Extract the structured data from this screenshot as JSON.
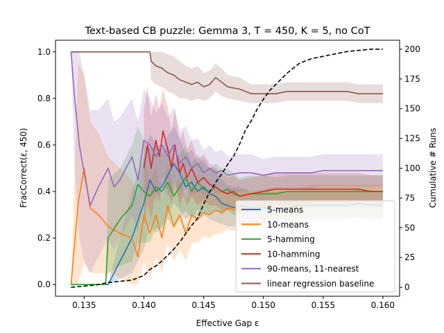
{
  "chart_data": {
    "type": "line",
    "title": "Text-based CB puzzle: Gemma 3, T = 450, K = 5, no CoT",
    "xlabel": "Effective Gap ε",
    "ylabel": "FracCorrect(ε, 450)",
    "y2label": "Cumulative # Runs",
    "xlim": [
      0.1326,
      0.1614
    ],
    "ylim": [
      -0.05,
      1.05
    ],
    "y2lim": [
      -7.5,
      207.5
    ],
    "xticks": [
      "0.135",
      "0.140",
      "0.145",
      "0.150",
      "0.155",
      "0.160"
    ],
    "xtick_values": [
      0.135,
      0.14,
      0.145,
      0.15,
      0.155,
      0.16
    ],
    "yticks": [
      "0.0",
      "0.2",
      "0.4",
      "0.6",
      "0.8",
      "1.0"
    ],
    "ytick_values": [
      0,
      0.2,
      0.4,
      0.6,
      0.8,
      1.0
    ],
    "y2ticks": [
      "0",
      "25",
      "50",
      "75",
      "100",
      "125",
      "150",
      "175",
      "200"
    ],
    "y2tick_values": [
      0,
      25,
      50,
      75,
      100,
      125,
      150,
      175,
      200
    ],
    "grid": false,
    "legend_position": "bottom-right",
    "series": [
      {
        "name": "5-means",
        "color": "#1f77b4",
        "x": [
          0.1339,
          0.1352,
          0.137,
          0.139,
          0.14,
          0.1405,
          0.141,
          0.1415,
          0.142,
          0.1425,
          0.143,
          0.1435,
          0.144,
          0.1445,
          0.145,
          0.1455,
          0.146,
          0.1465,
          0.147,
          0.1475,
          0.148,
          0.149,
          0.15,
          0.151,
          0.152,
          0.153,
          0.154,
          0.155,
          0.156,
          0.157,
          0.158,
          0.159,
          0.16
        ],
        "y": [
          0.0,
          0.0,
          0.0,
          0.2,
          0.35,
          0.45,
          0.4,
          0.42,
          0.47,
          0.52,
          0.48,
          0.42,
          0.44,
          0.4,
          0.42,
          0.39,
          0.38,
          0.35,
          0.34,
          0.33,
          0.34,
          0.33,
          0.33,
          0.33,
          0.33,
          0.34,
          0.34,
          0.34,
          0.34,
          0.34,
          0.35,
          0.34,
          0.34
        ],
        "lower": [
          0.0,
          0.0,
          0.0,
          0.05,
          0.15,
          0.25,
          0.22,
          0.25,
          0.3,
          0.35,
          0.32,
          0.28,
          0.3,
          0.28,
          0.3,
          0.28,
          0.27,
          0.26,
          0.25,
          0.25,
          0.26,
          0.26,
          0.26,
          0.27,
          0.27,
          0.28,
          0.28,
          0.28,
          0.28,
          0.28,
          0.29,
          0.28,
          0.28
        ],
        "upper": [
          0.0,
          0.0,
          0.0,
          0.4,
          0.55,
          0.65,
          0.6,
          0.6,
          0.64,
          0.68,
          0.63,
          0.56,
          0.58,
          0.52,
          0.54,
          0.5,
          0.49,
          0.45,
          0.43,
          0.42,
          0.42,
          0.4,
          0.4,
          0.4,
          0.4,
          0.4,
          0.4,
          0.4,
          0.4,
          0.4,
          0.41,
          0.4,
          0.4
        ]
      },
      {
        "name": "10-means",
        "color": "#ff7f0e",
        "x": [
          0.1339,
          0.1345,
          0.135,
          0.1355,
          0.1362,
          0.137,
          0.138,
          0.139,
          0.1395,
          0.14,
          0.1405,
          0.141,
          0.1415,
          0.142,
          0.1425,
          0.143,
          0.1435,
          0.144,
          0.1445,
          0.145,
          0.1455,
          0.146,
          0.1465,
          0.147,
          0.1475,
          0.148,
          0.149,
          0.15,
          0.151,
          0.152,
          0.153,
          0.154,
          0.155,
          0.156,
          0.157,
          0.158,
          0.159,
          0.16
        ],
        "y": [
          0.0,
          0.35,
          0.5,
          0.33,
          0.3,
          0.25,
          0.22,
          0.2,
          0.12,
          0.3,
          0.22,
          0.3,
          0.2,
          0.34,
          0.25,
          0.3,
          0.22,
          0.3,
          0.28,
          0.31,
          0.3,
          0.32,
          0.31,
          0.33,
          0.32,
          0.33,
          0.32,
          0.34,
          0.35,
          0.35,
          0.35,
          0.36,
          0.36,
          0.36,
          0.36,
          0.36,
          0.36,
          0.36
        ],
        "lower": [
          0.0,
          0.0,
          0.1,
          0.05,
          0.05,
          0.05,
          0.03,
          0.0,
          0.0,
          0.1,
          0.02,
          0.12,
          0.05,
          0.18,
          0.1,
          0.15,
          0.1,
          0.18,
          0.18,
          0.21,
          0.2,
          0.22,
          0.22,
          0.24,
          0.23,
          0.25,
          0.25,
          0.27,
          0.28,
          0.28,
          0.28,
          0.29,
          0.29,
          0.29,
          0.29,
          0.29,
          0.29,
          0.29
        ],
        "upper": [
          0.0,
          0.95,
          0.9,
          0.7,
          0.65,
          0.55,
          0.5,
          0.45,
          0.38,
          0.55,
          0.45,
          0.5,
          0.38,
          0.52,
          0.42,
          0.46,
          0.36,
          0.44,
          0.4,
          0.42,
          0.4,
          0.42,
          0.4,
          0.42,
          0.41,
          0.41,
          0.4,
          0.41,
          0.42,
          0.42,
          0.42,
          0.43,
          0.43,
          0.43,
          0.43,
          0.43,
          0.43,
          0.43
        ]
      },
      {
        "name": "5-hamming",
        "color": "#2ca02c",
        "x": [
          0.1339,
          0.1352,
          0.1368,
          0.137,
          0.138,
          0.139,
          0.1395,
          0.14,
          0.1405,
          0.141,
          0.1415,
          0.142,
          0.1425,
          0.143,
          0.1435,
          0.144,
          0.1445,
          0.145,
          0.1455,
          0.146,
          0.1465,
          0.147,
          0.1475,
          0.148,
          0.149,
          0.15,
          0.151,
          0.152,
          0.153,
          0.154,
          0.155,
          0.156,
          0.157,
          0.158,
          0.159,
          0.16
        ],
        "y": [
          0.0,
          0.0,
          0.0,
          0.2,
          0.28,
          0.34,
          0.43,
          0.4,
          0.38,
          0.42,
          0.4,
          0.44,
          0.38,
          0.42,
          0.46,
          0.4,
          0.44,
          0.41,
          0.4,
          0.42,
          0.4,
          0.41,
          0.39,
          0.38,
          0.39,
          0.39,
          0.39,
          0.4,
          0.4,
          0.4,
          0.4,
          0.4,
          0.4,
          0.4,
          0.4,
          0.4
        ],
        "lower": [
          0.0,
          0.0,
          0.0,
          0.05,
          0.08,
          0.1,
          0.18,
          0.18,
          0.18,
          0.24,
          0.24,
          0.28,
          0.24,
          0.28,
          0.32,
          0.28,
          0.32,
          0.3,
          0.3,
          0.32,
          0.3,
          0.32,
          0.3,
          0.3,
          0.31,
          0.31,
          0.32,
          0.33,
          0.33,
          0.33,
          0.33,
          0.33,
          0.33,
          0.33,
          0.33,
          0.33
        ],
        "upper": [
          0.0,
          0.0,
          0.0,
          0.45,
          0.5,
          0.6,
          0.68,
          0.62,
          0.58,
          0.6,
          0.56,
          0.6,
          0.52,
          0.56,
          0.6,
          0.52,
          0.56,
          0.52,
          0.5,
          0.52,
          0.5,
          0.5,
          0.48,
          0.46,
          0.47,
          0.47,
          0.46,
          0.47,
          0.47,
          0.47,
          0.47,
          0.47,
          0.47,
          0.47,
          0.47,
          0.47
        ]
      },
      {
        "name": "10-hamming",
        "color": "#d62728",
        "x": [
          0.14,
          0.1403,
          0.1406,
          0.141,
          0.1413,
          0.1416,
          0.142,
          0.1423,
          0.1426,
          0.143,
          0.1433,
          0.1436,
          0.144,
          0.1445,
          0.145,
          0.1455,
          0.146,
          0.1465,
          0.147,
          0.1475,
          0.148,
          0.149,
          0.15,
          0.151,
          0.152,
          0.153,
          0.154,
          0.155,
          0.156,
          0.157,
          0.158,
          0.159,
          0.16
        ],
        "y": [
          0.5,
          0.6,
          0.5,
          0.62,
          0.55,
          0.66,
          0.58,
          0.5,
          0.6,
          0.48,
          0.52,
          0.46,
          0.5,
          0.44,
          0.46,
          0.43,
          0.42,
          0.4,
          0.39,
          0.4,
          0.38,
          0.39,
          0.4,
          0.41,
          0.41,
          0.41,
          0.41,
          0.41,
          0.41,
          0.41,
          0.41,
          0.4,
          0.4
        ],
        "lower": [
          0.25,
          0.35,
          0.28,
          0.4,
          0.35,
          0.46,
          0.4,
          0.34,
          0.44,
          0.34,
          0.38,
          0.34,
          0.38,
          0.34,
          0.36,
          0.34,
          0.34,
          0.32,
          0.32,
          0.33,
          0.31,
          0.32,
          0.33,
          0.34,
          0.34,
          0.34,
          0.34,
          0.34,
          0.34,
          0.34,
          0.34,
          0.34,
          0.34
        ],
        "upper": [
          0.75,
          0.85,
          0.72,
          0.82,
          0.75,
          0.84,
          0.76,
          0.66,
          0.76,
          0.62,
          0.66,
          0.58,
          0.62,
          0.54,
          0.56,
          0.52,
          0.5,
          0.48,
          0.46,
          0.47,
          0.45,
          0.46,
          0.47,
          0.48,
          0.48,
          0.48,
          0.48,
          0.48,
          0.48,
          0.48,
          0.48,
          0.47,
          0.47
        ]
      },
      {
        "name": "90-means, 11-nearest",
        "color": "#9467bd",
        "x": [
          0.1339,
          0.1342,
          0.1346,
          0.135,
          0.1355,
          0.1362,
          0.137,
          0.1375,
          0.138,
          0.1385,
          0.139,
          0.1395,
          0.14,
          0.1405,
          0.141,
          0.1415,
          0.142,
          0.1425,
          0.143,
          0.1435,
          0.144,
          0.1445,
          0.145,
          0.1455,
          0.146,
          0.1465,
          0.147,
          0.148,
          0.149,
          0.15,
          0.151,
          0.152,
          0.153,
          0.154,
          0.155,
          0.156,
          0.157,
          0.158,
          0.159,
          0.16
        ],
        "y": [
          1.0,
          0.8,
          0.6,
          0.48,
          0.34,
          0.42,
          0.5,
          0.42,
          0.45,
          0.5,
          0.55,
          0.45,
          0.62,
          0.6,
          0.55,
          0.6,
          0.55,
          0.6,
          0.52,
          0.55,
          0.5,
          0.52,
          0.48,
          0.5,
          0.48,
          0.49,
          0.47,
          0.48,
          0.48,
          0.47,
          0.48,
          0.48,
          0.48,
          0.48,
          0.49,
          0.49,
          0.49,
          0.49,
          0.49,
          0.49
        ],
        "lower": [
          1.0,
          0.5,
          0.2,
          0.1,
          0.05,
          0.12,
          0.2,
          0.15,
          0.2,
          0.25,
          0.3,
          0.22,
          0.4,
          0.4,
          0.36,
          0.42,
          0.38,
          0.44,
          0.38,
          0.42,
          0.38,
          0.41,
          0.38,
          0.4,
          0.39,
          0.4,
          0.39,
          0.4,
          0.4,
          0.4,
          0.41,
          0.41,
          0.41,
          0.41,
          0.42,
          0.42,
          0.42,
          0.42,
          0.42,
          0.42
        ],
        "upper": [
          1.0,
          1.0,
          1.0,
          0.9,
          0.75,
          0.75,
          0.8,
          0.7,
          0.72,
          0.76,
          0.8,
          0.7,
          0.84,
          0.8,
          0.74,
          0.78,
          0.72,
          0.76,
          0.66,
          0.68,
          0.62,
          0.63,
          0.58,
          0.6,
          0.57,
          0.58,
          0.55,
          0.56,
          0.56,
          0.54,
          0.55,
          0.55,
          0.55,
          0.55,
          0.56,
          0.56,
          0.56,
          0.56,
          0.56,
          0.56
        ]
      },
      {
        "name": "linear regression baseline",
        "color": "#8c564b",
        "x": [
          0.1339,
          0.1405,
          0.1406,
          0.141,
          0.1415,
          0.142,
          0.1425,
          0.143,
          0.1435,
          0.144,
          0.1445,
          0.145,
          0.1455,
          0.146,
          0.1465,
          0.147,
          0.148,
          0.149,
          0.15,
          0.151,
          0.152,
          0.153,
          0.154,
          0.155,
          0.156,
          0.157,
          0.158,
          0.159,
          0.16
        ],
        "y": [
          1.0,
          1.0,
          0.96,
          0.94,
          0.93,
          0.91,
          0.9,
          0.88,
          0.87,
          0.86,
          0.87,
          0.85,
          0.86,
          0.89,
          0.87,
          0.85,
          0.84,
          0.82,
          0.82,
          0.82,
          0.83,
          0.83,
          0.83,
          0.83,
          0.83,
          0.83,
          0.82,
          0.82,
          0.82
        ],
        "lower": [
          1.0,
          1.0,
          0.88,
          0.86,
          0.85,
          0.83,
          0.82,
          0.8,
          0.8,
          0.79,
          0.8,
          0.79,
          0.8,
          0.83,
          0.81,
          0.8,
          0.79,
          0.78,
          0.78,
          0.78,
          0.79,
          0.79,
          0.79,
          0.79,
          0.79,
          0.79,
          0.78,
          0.78,
          0.78
        ],
        "upper": [
          1.0,
          1.0,
          1.0,
          1.0,
          1.0,
          0.99,
          0.98,
          0.96,
          0.94,
          0.93,
          0.94,
          0.91,
          0.92,
          0.95,
          0.93,
          0.9,
          0.89,
          0.86,
          0.86,
          0.86,
          0.87,
          0.87,
          0.87,
          0.87,
          0.87,
          0.87,
          0.86,
          0.86,
          0.86
        ]
      }
    ],
    "cumulative_runs": {
      "color": "#000000",
      "style": "dashed",
      "axis": "right",
      "x": [
        0.1339,
        0.135,
        0.136,
        0.137,
        0.138,
        0.139,
        0.1395,
        0.14,
        0.1405,
        0.141,
        0.1415,
        0.142,
        0.1425,
        0.143,
        0.1435,
        0.144,
        0.1445,
        0.145,
        0.1455,
        0.146,
        0.1465,
        0.147,
        0.1475,
        0.148,
        0.1485,
        0.149,
        0.1495,
        0.15,
        0.1505,
        0.151,
        0.1515,
        0.152,
        0.1525,
        0.153,
        0.1535,
        0.154,
        0.155,
        0.156,
        0.157,
        0.158,
        0.159,
        0.16
      ],
      "y": [
        0,
        1,
        2,
        4,
        5,
        6,
        8,
        10,
        15,
        18,
        22,
        27,
        32,
        38,
        45,
        52,
        58,
        70,
        80,
        88,
        95,
        103,
        110,
        120,
        132,
        140,
        150,
        158,
        165,
        170,
        175,
        180,
        184,
        188,
        190,
        192,
        194,
        196,
        198,
        199,
        200,
        200
      ]
    }
  }
}
